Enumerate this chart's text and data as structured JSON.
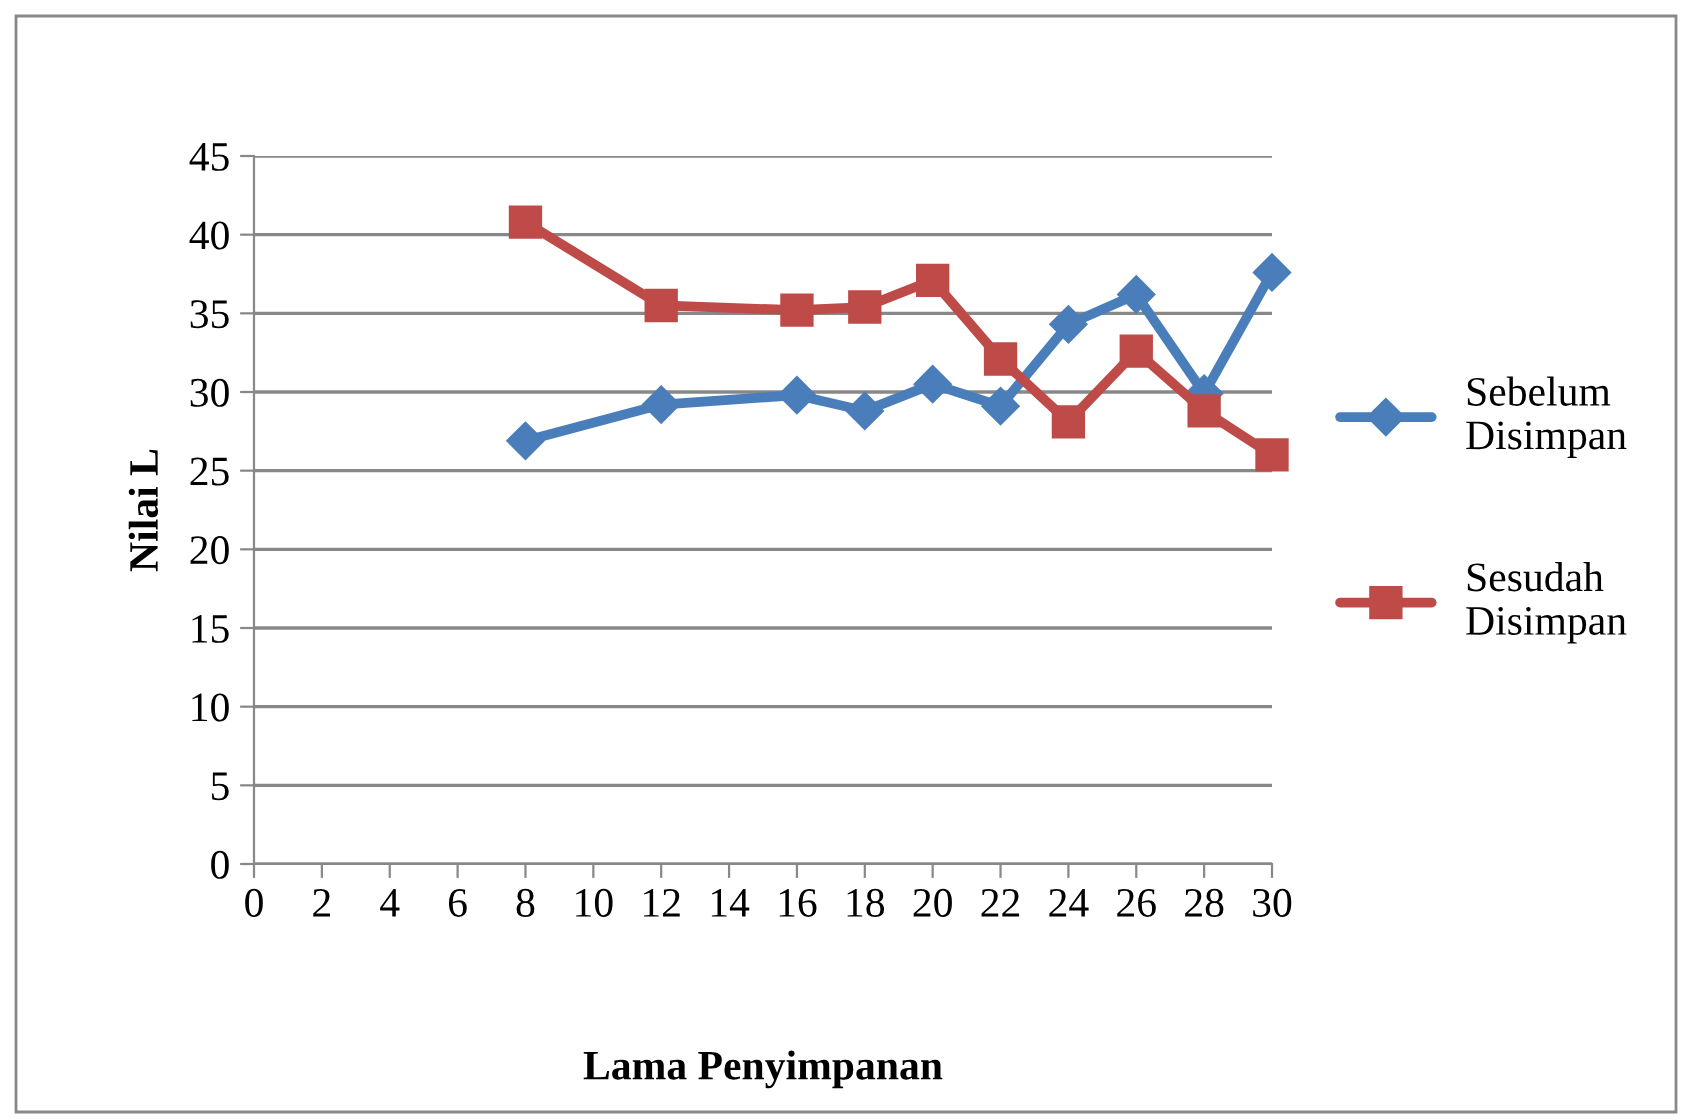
{
  "chart_data": {
    "type": "line",
    "xlabel": "Lama Penyimpanan",
    "ylabel": "Nilai L",
    "x": [
      8,
      12,
      16,
      18,
      20,
      22,
      24,
      26,
      28,
      30
    ],
    "series": [
      {
        "name": "Sebelum Disimpan",
        "color": "#4a7ebb",
        "marker": "diamond",
        "values": [
          26.9,
          29.2,
          29.8,
          28.8,
          30.5,
          29.1,
          34.3,
          36.2,
          29.9,
          37.6
        ]
      },
      {
        "name": "Sesudah Disimpan",
        "color": "#be4b48",
        "marker": "square",
        "values": [
          40.8,
          35.5,
          35.2,
          35.4,
          37.1,
          32.1,
          28.1,
          32.6,
          28.8,
          26.0
        ]
      }
    ],
    "xlim": [
      0,
      30
    ],
    "xticks": [
      0,
      2,
      4,
      6,
      8,
      10,
      12,
      14,
      16,
      18,
      20,
      22,
      24,
      26,
      28,
      30
    ],
    "ylim": [
      0,
      45
    ],
    "yticks": [
      0,
      5,
      10,
      15,
      20,
      25,
      30,
      35,
      40,
      45
    ],
    "grid": "y",
    "legend": "right",
    "line_style": "solid"
  }
}
